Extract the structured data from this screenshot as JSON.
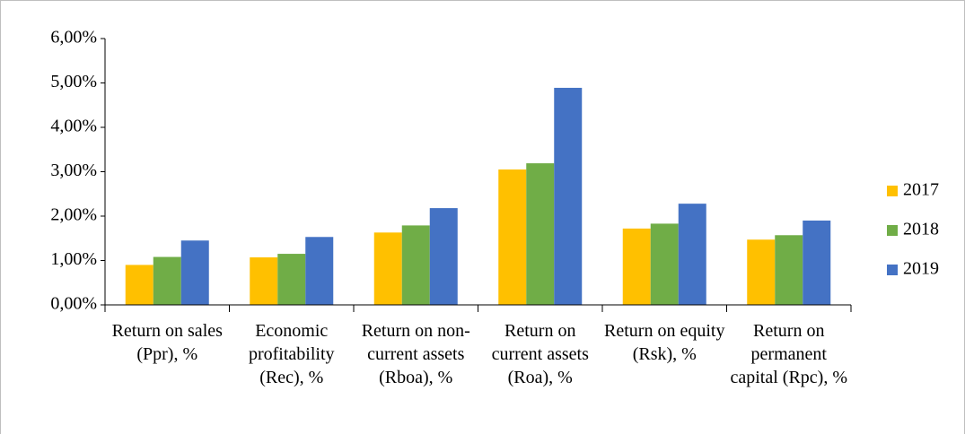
{
  "chart_data": {
    "type": "bar",
    "categories": [
      "Return on sales (Ppr), %",
      "Economic profitability (Rec), %",
      "Return on non-current assets (Rboa), %",
      "Return on current assets (Roa), %",
      "Return on equity (Rsk), %",
      "Return on permanent capital (Rpc), %"
    ],
    "series": [
      {
        "name": "2017",
        "color": "#FFC000",
        "values": [
          0.9,
          1.07,
          1.63,
          3.05,
          1.72,
          1.47
        ]
      },
      {
        "name": "2018",
        "color": "#70AD47",
        "values": [
          1.08,
          1.15,
          1.79,
          3.19,
          1.83,
          1.57
        ]
      },
      {
        "name": "2019",
        "color": "#4472C4",
        "values": [
          1.45,
          1.53,
          2.18,
          4.89,
          2.28,
          1.9
        ]
      }
    ],
    "ylim": [
      0,
      6
    ],
    "yticks": [
      {
        "value": 0,
        "label": "0,00%"
      },
      {
        "value": 1,
        "label": "1,00%"
      },
      {
        "value": 2,
        "label": "2,00%"
      },
      {
        "value": 3,
        "label": "3,00%"
      },
      {
        "value": 4,
        "label": "4,00%"
      },
      {
        "value": 5,
        "label": "5,00%"
      },
      {
        "value": 6,
        "label": "6,00%"
      }
    ],
    "grid": false,
    "legend": "right"
  }
}
